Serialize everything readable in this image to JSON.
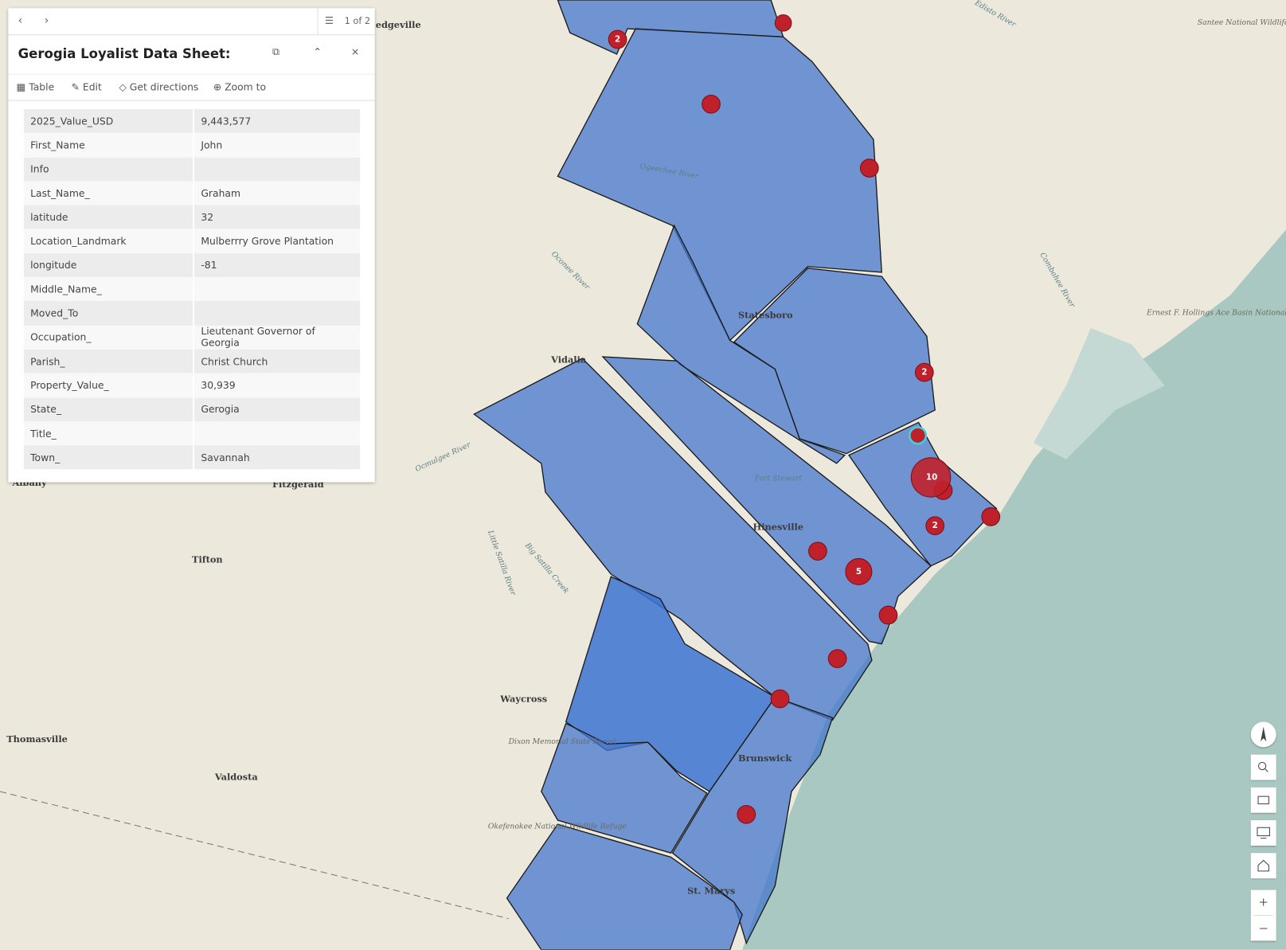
{
  "popup": {
    "pager": "1 of 2",
    "title": "Gerogia Loyalist Data Sheet:",
    "actions": [
      "Table",
      "Edit",
      "Get directions",
      "Zoom to"
    ],
    "rows": [
      [
        "2025_Value_USD",
        "9,443,577"
      ],
      [
        "First_Name",
        "John"
      ],
      [
        "Info",
        ""
      ],
      [
        "Last_Name_",
        "Graham"
      ],
      [
        "latitude",
        "32"
      ],
      [
        "Location_Landmark",
        "Mulberrry Grove Plantation"
      ],
      [
        "longitude",
        "-81"
      ],
      [
        "Middle_Name_",
        ""
      ],
      [
        "Moved_To",
        ""
      ],
      [
        "Occupation_",
        "Lieutenant Governor of Georgia"
      ],
      [
        "Parish_",
        "Christ Church"
      ],
      [
        "Property_Value_",
        "30,939"
      ],
      [
        "State_",
        "Gerogia"
      ],
      [
        "Title_",
        ""
      ],
      [
        "Town_",
        "Savannah"
      ]
    ]
  },
  "map": {
    "places": [
      "edgeville",
      "Statesboro",
      "Vidalia",
      "Hinesville",
      "Fort Stewart",
      "Waycross",
      "Brunswick",
      "Thomasville",
      "Valdosta",
      "Tifton",
      "Fitzgerald",
      "Albany",
      "St. Marys"
    ],
    "parks": [
      "Dixon Memorial State Forest",
      "Okefenokee National Wildlife Refuge",
      "Ernest F. Hollings Ace Basin National Wildlife Refuge",
      "Santee National Wildlife Refuge"
    ],
    "rivers": [
      "Ogeechee River",
      "Ocmulgee River",
      "Oconee River",
      "Little Satilla River",
      "Big Satilla Creek",
      "Edisto River",
      "Combahee River"
    ],
    "clusters": [
      "2",
      "2",
      "10",
      "2",
      "5"
    ]
  }
}
